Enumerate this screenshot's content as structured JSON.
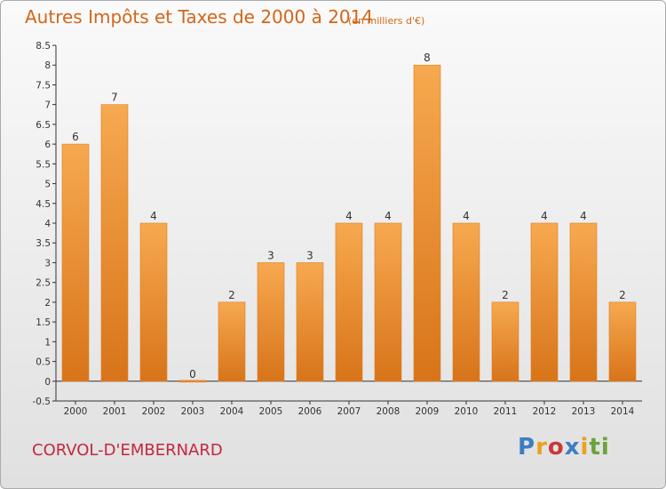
{
  "title": "Autres Impôts et Taxes de 2000 à 2014",
  "unit": "(en milliers d'€)",
  "commune": "CORVOL-D'EMBERNARD",
  "logo": {
    "text": "Proxiti",
    "letters": [
      "P",
      "r",
      "o",
      "x",
      "i",
      "t",
      "i"
    ],
    "colors": [
      "#3a7fc1",
      "#e8a21c",
      "#c83a3a",
      "#3a7fc1",
      "#e8a21c",
      "#6aa33c",
      "#6aa33c"
    ]
  },
  "chart_data": {
    "type": "bar",
    "categories": [
      "2000",
      "2001",
      "2002",
      "2003",
      "2004",
      "2005",
      "2006",
      "2007",
      "2008",
      "2009",
      "2010",
      "2011",
      "2012",
      "2013",
      "2014"
    ],
    "values": [
      6,
      7,
      4,
      0,
      2,
      3,
      3,
      4,
      4,
      8,
      4,
      2,
      4,
      4,
      2
    ],
    "value_labels": [
      "6",
      "7",
      "4",
      "0",
      "2",
      "3",
      "3",
      "4",
      "4",
      "8",
      "4",
      "2",
      "4",
      "4",
      "2"
    ],
    "ylim": [
      -0.5,
      8.5
    ],
    "yticks": [
      "-0.5",
      "0",
      "0.5",
      "1",
      "1.5",
      "2",
      "2.5",
      "3",
      "3.5",
      "4",
      "4.5",
      "5",
      "5.5",
      "6",
      "6.5",
      "7",
      "7.5",
      "8",
      "8.5"
    ],
    "grid": false,
    "legend": "none",
    "colors": {
      "bar_top": "#f7a94f",
      "bar_bottom": "#d8741a",
      "axis": "#333333"
    }
  }
}
